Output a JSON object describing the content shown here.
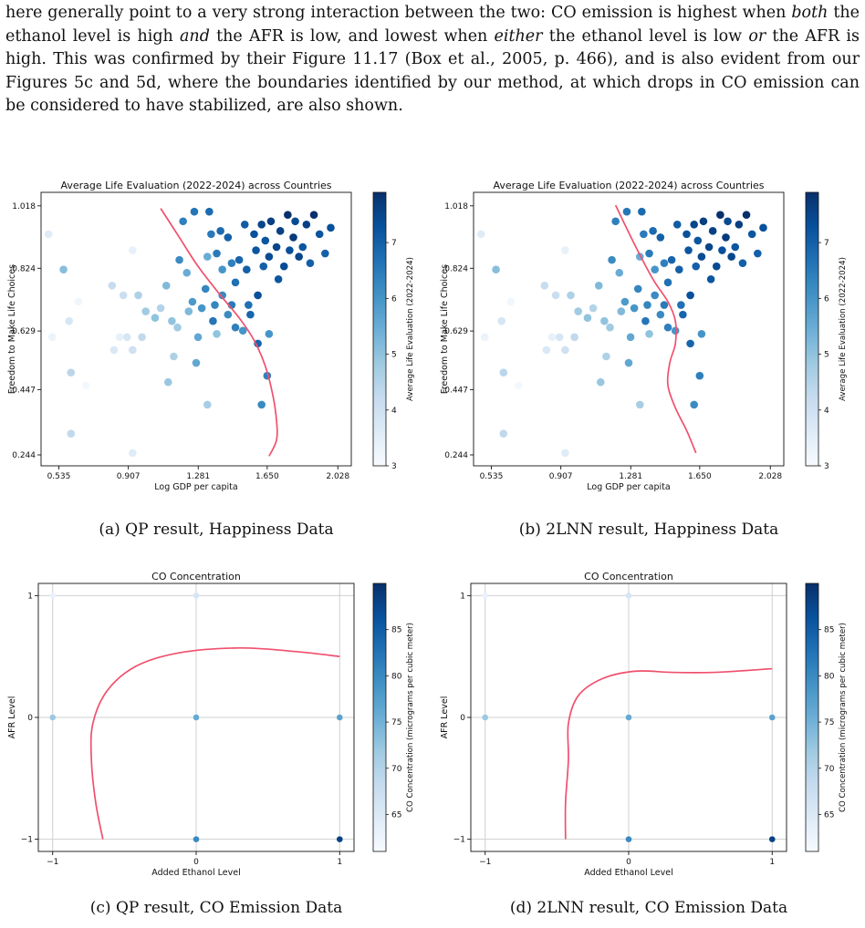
{
  "paragraph": {
    "s1": "here generally point to a very strong interaction between the two: CO emission is highest when ",
    "e1": "both",
    "s2": " the ethanol level is high ",
    "e2": "and",
    "s3": " the AFR is low, and lowest when ",
    "e3": "either",
    "s4": " the ethanol level is low ",
    "e4": "or",
    "s5": " the AFR is high. This was confirmed by their Figure 11.17 (Box et al., 2005, p. 466), and is also evident from our Figures 5c and 5d, where the boundaries identified by our method, at which drops in CO emission can be considered to have stabilized, are also shown."
  },
  "captions": {
    "a": "(a) QP result, Happiness Data",
    "b": "(b) 2LNN result, Happiness Data",
    "c": "(c) QP result, CO Emission Data",
    "d": "(d) 2LNN result, CO Emission Data"
  },
  "colors": {
    "boundary": "#f0506e",
    "grid": "#d0d0d0",
    "cmap": [
      "#f7fbff",
      "#deebf7",
      "#c6dbef",
      "#9ecae1",
      "#6baed6",
      "#4292c6",
      "#2171b5",
      "#08519c",
      "#08306b"
    ]
  },
  "chart_data": [
    {
      "id": "a",
      "type": "scatter",
      "title": "Average Life Evaluation (2022-2024) across Countries",
      "xlabel": "Log GDP per capita",
      "ylabel": "Freedom to Make Life Choices",
      "colorbar_label": "Average Life Evaluation (2022-2024)",
      "xticks": [
        "0.535",
        "0.907",
        "1.281",
        "1.650",
        "2.028"
      ],
      "yticks": [
        "0.244",
        "0.447",
        "0.629",
        "0.824",
        "1.018"
      ],
      "xlim": [
        0.44,
        2.1
      ],
      "ylim": [
        0.21,
        1.06
      ],
      "clim": [
        3,
        7.9
      ],
      "cticks": [
        "3",
        "4",
        "5",
        "6",
        "7"
      ],
      "grid": false,
      "points": [
        [
          0.48,
          0.93,
          3.6
        ],
        [
          0.5,
          0.61,
          3.3
        ],
        [
          0.56,
          0.82,
          5.1
        ],
        [
          0.59,
          0.66,
          3.8
        ],
        [
          0.6,
          0.5,
          4.4
        ],
        [
          0.6,
          0.31,
          4.3
        ],
        [
          0.64,
          0.72,
          3.2
        ],
        [
          0.68,
          0.46,
          3.1
        ],
        [
          0.82,
          0.77,
          4.2
        ],
        [
          0.83,
          0.57,
          3.7
        ],
        [
          0.86,
          0.61,
          3.4
        ],
        [
          0.88,
          0.74,
          4.1
        ],
        [
          0.9,
          0.61,
          3.8
        ],
        [
          0.93,
          0.88,
          3.4
        ],
        [
          0.93,
          0.57,
          4.0
        ],
        [
          0.96,
          0.74,
          4.6
        ],
        [
          0.98,
          0.61,
          4.3
        ],
        [
          1.0,
          0.69,
          4.8
        ],
        [
          0.93,
          0.25,
          3.6
        ],
        [
          1.05,
          0.67,
          5.0
        ],
        [
          1.08,
          0.7,
          4.5
        ],
        [
          1.11,
          0.77,
          5.2
        ],
        [
          1.14,
          0.66,
          5.0
        ],
        [
          1.17,
          0.64,
          4.8
        ],
        [
          1.12,
          0.47,
          4.9
        ],
        [
          1.15,
          0.55,
          4.6
        ],
        [
          1.18,
          0.85,
          6.2
        ],
        [
          1.2,
          0.97,
          6.4
        ],
        [
          1.22,
          0.81,
          5.5
        ],
        [
          1.25,
          0.72,
          5.9
        ],
        [
          1.27,
          0.53,
          5.6
        ],
        [
          1.26,
          1.0,
          6.6
        ],
        [
          1.3,
          0.7,
          6.0
        ],
        [
          1.32,
          0.76,
          6.3
        ],
        [
          1.33,
          0.86,
          5.5
        ],
        [
          1.34,
          1.0,
          6.8
        ],
        [
          1.36,
          0.66,
          6.6
        ],
        [
          1.37,
          0.71,
          6.3
        ],
        [
          1.38,
          0.87,
          6.5
        ],
        [
          1.38,
          0.62,
          5.0
        ],
        [
          1.4,
          0.94,
          6.8
        ],
        [
          1.41,
          0.74,
          6.2
        ],
        [
          1.44,
          0.92,
          7.0
        ],
        [
          1.46,
          0.71,
          6.5
        ],
        [
          1.48,
          0.78,
          6.7
        ],
        [
          1.48,
          0.64,
          6.4
        ],
        [
          1.5,
          0.85,
          6.9
        ],
        [
          1.53,
          0.96,
          7.1
        ],
        [
          1.54,
          0.82,
          7.0
        ],
        [
          1.56,
          0.68,
          6.9
        ],
        [
          1.58,
          0.93,
          7.3
        ],
        [
          1.59,
          0.88,
          7.2
        ],
        [
          1.6,
          0.74,
          7.3
        ],
        [
          1.62,
          0.96,
          7.5
        ],
        [
          1.63,
          0.83,
          7.0
        ],
        [
          1.64,
          0.91,
          7.2
        ],
        [
          1.66,
          0.86,
          7.4
        ],
        [
          1.66,
          0.62,
          6.0
        ],
        [
          1.67,
          0.97,
          7.6
        ],
        [
          1.7,
          0.89,
          7.5
        ],
        [
          1.71,
          0.79,
          7.2
        ],
        [
          1.72,
          0.94,
          7.6
        ],
        [
          1.74,
          0.83,
          7.4
        ],
        [
          1.76,
          0.99,
          7.9
        ],
        [
          1.77,
          0.88,
          7.3
        ],
        [
          1.79,
          0.92,
          7.7
        ],
        [
          1.8,
          0.97,
          7.4
        ],
        [
          1.82,
          0.86,
          7.5
        ],
        [
          1.84,
          0.89,
          7.2
        ],
        [
          1.86,
          0.96,
          7.6
        ],
        [
          1.88,
          0.84,
          7.0
        ],
        [
          1.9,
          0.99,
          7.9
        ],
        [
          1.93,
          0.93,
          7.2
        ],
        [
          1.96,
          0.87,
          7.0
        ],
        [
          1.99,
          0.95,
          7.3
        ],
        [
          1.46,
          0.84,
          6.4
        ],
        [
          1.55,
          0.71,
          6.7
        ],
        [
          1.6,
          0.59,
          6.9
        ],
        [
          1.65,
          0.49,
          6.4
        ],
        [
          1.62,
          0.4,
          6.2
        ],
        [
          1.33,
          0.4,
          4.7
        ],
        [
          1.52,
          0.63,
          6.0
        ],
        [
          1.44,
          0.68,
          6.2
        ],
        [
          1.41,
          0.82,
          6.0
        ],
        [
          1.35,
          0.93,
          6.5
        ],
        [
          1.23,
          0.69,
          5.2
        ],
        [
          1.28,
          0.61,
          5.6
        ]
      ],
      "boundary": [
        [
          1.08,
          1.01
        ],
        [
          1.18,
          0.92
        ],
        [
          1.28,
          0.83
        ],
        [
          1.4,
          0.74
        ],
        [
          1.5,
          0.67
        ],
        [
          1.58,
          0.6
        ],
        [
          1.64,
          0.52
        ],
        [
          1.68,
          0.43
        ],
        [
          1.7,
          0.35
        ],
        [
          1.7,
          0.29
        ],
        [
          1.66,
          0.24
        ]
      ]
    },
    {
      "id": "b",
      "type": "scatter",
      "title": "Average Life Evaluation (2022-2024) across Countries",
      "xlabel": "Log GDP per capita",
      "ylabel": "Freedom to Make Life Choices",
      "colorbar_label": "Average Life Evaluation (2022-2024)",
      "xticks": [
        "0.535",
        "0.907",
        "1.281",
        "1.650",
        "2.028"
      ],
      "yticks": [
        "0.244",
        "0.447",
        "0.629",
        "0.824",
        "1.018"
      ],
      "xlim": [
        0.44,
        2.1
      ],
      "ylim": [
        0.21,
        1.06
      ],
      "clim": [
        3,
        7.9
      ],
      "cticks": [
        "3",
        "4",
        "5",
        "6",
        "7"
      ],
      "grid": false,
      "points": [
        [
          0.48,
          0.93,
          3.6
        ],
        [
          0.5,
          0.61,
          3.3
        ],
        [
          0.56,
          0.82,
          5.1
        ],
        [
          0.59,
          0.66,
          3.8
        ],
        [
          0.6,
          0.5,
          4.4
        ],
        [
          0.6,
          0.31,
          4.3
        ],
        [
          0.64,
          0.72,
          3.2
        ],
        [
          0.68,
          0.46,
          3.1
        ],
        [
          0.82,
          0.77,
          4.2
        ],
        [
          0.83,
          0.57,
          3.7
        ],
        [
          0.86,
          0.61,
          3.4
        ],
        [
          0.88,
          0.74,
          4.1
        ],
        [
          0.9,
          0.61,
          3.8
        ],
        [
          0.93,
          0.88,
          3.4
        ],
        [
          0.93,
          0.57,
          4.0
        ],
        [
          0.96,
          0.74,
          4.6
        ],
        [
          0.98,
          0.61,
          4.3
        ],
        [
          1.0,
          0.69,
          4.8
        ],
        [
          0.93,
          0.25,
          3.6
        ],
        [
          1.05,
          0.67,
          5.0
        ],
        [
          1.08,
          0.7,
          4.5
        ],
        [
          1.11,
          0.77,
          5.2
        ],
        [
          1.14,
          0.66,
          5.0
        ],
        [
          1.17,
          0.64,
          4.8
        ],
        [
          1.12,
          0.47,
          4.9
        ],
        [
          1.15,
          0.55,
          4.6
        ],
        [
          1.18,
          0.85,
          6.2
        ],
        [
          1.2,
          0.97,
          6.4
        ],
        [
          1.22,
          0.81,
          5.5
        ],
        [
          1.25,
          0.72,
          5.9
        ],
        [
          1.27,
          0.53,
          5.6
        ],
        [
          1.26,
          1.0,
          6.6
        ],
        [
          1.3,
          0.7,
          6.0
        ],
        [
          1.32,
          0.76,
          6.3
        ],
        [
          1.33,
          0.86,
          5.5
        ],
        [
          1.34,
          1.0,
          6.8
        ],
        [
          1.36,
          0.66,
          6.6
        ],
        [
          1.37,
          0.71,
          6.3
        ],
        [
          1.38,
          0.87,
          6.5
        ],
        [
          1.38,
          0.62,
          5.0
        ],
        [
          1.4,
          0.94,
          6.8
        ],
        [
          1.41,
          0.74,
          6.2
        ],
        [
          1.44,
          0.92,
          7.0
        ],
        [
          1.46,
          0.71,
          6.5
        ],
        [
          1.48,
          0.78,
          6.7
        ],
        [
          1.48,
          0.64,
          6.4
        ],
        [
          1.5,
          0.85,
          6.9
        ],
        [
          1.53,
          0.96,
          7.1
        ],
        [
          1.54,
          0.82,
          7.0
        ],
        [
          1.56,
          0.68,
          6.9
        ],
        [
          1.58,
          0.93,
          7.3
        ],
        [
          1.59,
          0.88,
          7.2
        ],
        [
          1.6,
          0.74,
          7.3
        ],
        [
          1.62,
          0.96,
          7.5
        ],
        [
          1.63,
          0.83,
          7.0
        ],
        [
          1.64,
          0.91,
          7.2
        ],
        [
          1.66,
          0.86,
          7.4
        ],
        [
          1.66,
          0.62,
          6.0
        ],
        [
          1.67,
          0.97,
          7.6
        ],
        [
          1.7,
          0.89,
          7.5
        ],
        [
          1.71,
          0.79,
          7.2
        ],
        [
          1.72,
          0.94,
          7.6
        ],
        [
          1.74,
          0.83,
          7.4
        ],
        [
          1.76,
          0.99,
          7.9
        ],
        [
          1.77,
          0.88,
          7.3
        ],
        [
          1.79,
          0.92,
          7.7
        ],
        [
          1.8,
          0.97,
          7.4
        ],
        [
          1.82,
          0.86,
          7.5
        ],
        [
          1.84,
          0.89,
          7.2
        ],
        [
          1.86,
          0.96,
          7.6
        ],
        [
          1.88,
          0.84,
          7.0
        ],
        [
          1.9,
          0.99,
          7.9
        ],
        [
          1.93,
          0.93,
          7.2
        ],
        [
          1.96,
          0.87,
          7.0
        ],
        [
          1.99,
          0.95,
          7.3
        ],
        [
          1.46,
          0.84,
          6.4
        ],
        [
          1.55,
          0.71,
          6.7
        ],
        [
          1.6,
          0.59,
          6.9
        ],
        [
          1.65,
          0.49,
          6.4
        ],
        [
          1.62,
          0.4,
          6.2
        ],
        [
          1.33,
          0.4,
          4.7
        ],
        [
          1.52,
          0.63,
          6.0
        ],
        [
          1.44,
          0.68,
          6.2
        ],
        [
          1.41,
          0.82,
          6.0
        ],
        [
          1.35,
          0.93,
          6.5
        ],
        [
          1.23,
          0.69,
          5.2
        ],
        [
          1.28,
          0.61,
          5.6
        ]
      ],
      "boundary": [
        [
          1.2,
          1.02
        ],
        [
          1.3,
          0.9
        ],
        [
          1.4,
          0.79
        ],
        [
          1.48,
          0.72
        ],
        [
          1.52,
          0.66
        ],
        [
          1.52,
          0.59
        ],
        [
          1.49,
          0.53
        ],
        [
          1.48,
          0.46
        ],
        [
          1.52,
          0.39
        ],
        [
          1.58,
          0.32
        ],
        [
          1.63,
          0.25
        ]
      ]
    },
    {
      "id": "c",
      "type": "scatter",
      "title": "CO Concentration",
      "xlabel": "Added Ethanol Level",
      "ylabel": "AFR Level",
      "colorbar_label": "CO Concentration (micrograms per cubic meter)",
      "xticks": [
        "−1",
        "0",
        "1"
      ],
      "yticks": [
        "−1",
        "0",
        "1"
      ],
      "xlim": [
        -1.1,
        1.1
      ],
      "ylim": [
        -1.1,
        1.1
      ],
      "clim": [
        61,
        90
      ],
      "cticks": [
        "65",
        "70",
        "75",
        "80",
        "85"
      ],
      "grid": true,
      "points": [
        [
          -1,
          1,
          63
        ],
        [
          0,
          1,
          66
        ],
        [
          -1,
          0,
          72
        ],
        [
          0,
          0,
          76
        ],
        [
          1,
          0,
          77
        ],
        [
          0,
          -1,
          80
        ],
        [
          1,
          -1,
          88
        ]
      ],
      "boundary": [
        [
          -0.65,
          -1
        ],
        [
          -0.7,
          -0.7
        ],
        [
          -0.73,
          -0.35
        ],
        [
          -0.72,
          -0.05
        ],
        [
          -0.62,
          0.22
        ],
        [
          -0.42,
          0.42
        ],
        [
          -0.12,
          0.53
        ],
        [
          0.3,
          0.57
        ],
        [
          0.7,
          0.54
        ],
        [
          1.0,
          0.5
        ]
      ]
    },
    {
      "id": "d",
      "type": "scatter",
      "title": "CO Concentration",
      "xlabel": "Added Ethanol Level",
      "ylabel": "AFR Level",
      "colorbar_label": "CO Concentration (micrograms per cubic meter)",
      "xticks": [
        "−1",
        "0",
        "1"
      ],
      "yticks": [
        "−1",
        "0",
        "1"
      ],
      "xlim": [
        -1.1,
        1.1
      ],
      "ylim": [
        -1.1,
        1.1
      ],
      "clim": [
        61,
        90
      ],
      "cticks": [
        "65",
        "70",
        "75",
        "80",
        "85"
      ],
      "grid": true,
      "points": [
        [
          -1,
          1,
          63
        ],
        [
          0,
          1,
          66
        ],
        [
          -1,
          0,
          72
        ],
        [
          0,
          0,
          76
        ],
        [
          1,
          0,
          77
        ],
        [
          0,
          -1,
          80
        ],
        [
          1,
          -1,
          88
        ]
      ],
      "boundary": [
        [
          -0.44,
          -1
        ],
        [
          -0.44,
          -0.7
        ],
        [
          -0.42,
          -0.35
        ],
        [
          -0.42,
          -0.05
        ],
        [
          -0.35,
          0.18
        ],
        [
          -0.18,
          0.32
        ],
        [
          0.05,
          0.38
        ],
        [
          0.3,
          0.37
        ],
        [
          0.6,
          0.37
        ],
        [
          1.0,
          0.4
        ]
      ]
    }
  ]
}
